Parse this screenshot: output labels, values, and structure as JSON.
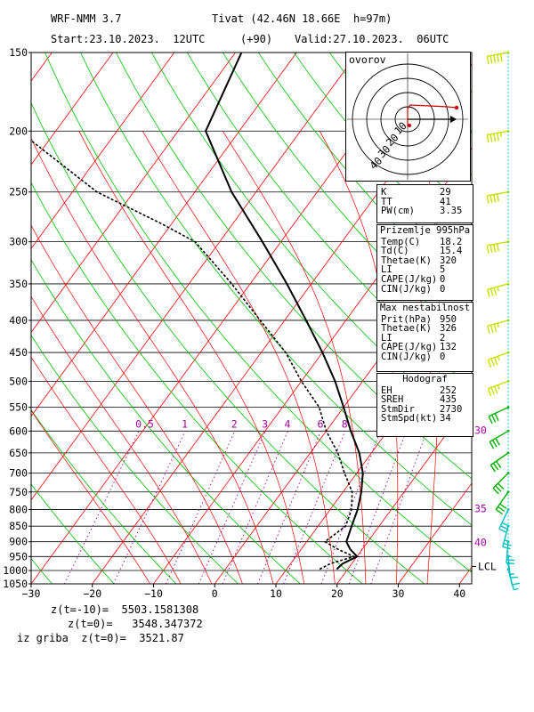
{
  "header": {
    "model": "WRF-NMM 3.7",
    "station": "Tivat (42.46N 18.66E  h=97m)",
    "start": "Start:23.10.2023.  12UTC",
    "lead": "(+90)",
    "valid": "Valid:27.10.2023.  06UTC"
  },
  "footer": {
    "line1": "z(t=-10)=  5503.1581308",
    "line2": "z(t=0)=   3548.347372",
    "line3": "iz griba  z(t=0)=  3521.87"
  },
  "hodograph": {
    "label": "ovorov",
    "ring_labels": [
      "10",
      "20",
      "30",
      "40"
    ],
    "points": [
      [
        0,
        -8
      ],
      [
        0,
        12
      ],
      [
        3,
        16
      ],
      [
        25,
        15
      ],
      [
        45,
        14
      ],
      [
        55,
        13
      ]
    ],
    "storm_motion": [
      2,
      -7
    ],
    "arrow": [
      48,
      0
    ]
  },
  "indices": {
    "k_label": "K",
    "k_value": "29",
    "tt_label": "TT",
    "tt_value": "41",
    "pw_label": "PW(cm)",
    "pw_value": "3.35"
  },
  "surface": {
    "title": "Prizemlje 995hPa",
    "rows": [
      {
        "label": "Temp(C)",
        "value": "18.2"
      },
      {
        "label": "Td(C)",
        "value": "15.4"
      },
      {
        "label": "Thetae(K)",
        "value": "320"
      },
      {
        "label": "LI",
        "value": "5"
      },
      {
        "label": "CAPE(J/kg)",
        "value": "0"
      },
      {
        "label": "CIN(J/kg)",
        "value": "0"
      }
    ]
  },
  "max_instability": {
    "title": "Max nestabilnost",
    "rows": [
      {
        "label": "Prit(hPa)",
        "value": "950"
      },
      {
        "label": "Thetae(K)",
        "value": "326"
      },
      {
        "label": "LI",
        "value": "2"
      },
      {
        "label": "CAPE(J/kg)",
        "value": "132"
      },
      {
        "label": "CIN(J/kg)",
        "value": "0"
      }
    ]
  },
  "hodograf": {
    "title": "Hodograf",
    "rows": [
      {
        "label": "EH",
        "value": "252"
      },
      {
        "label": "SREH",
        "value": "435"
      },
      {
        "label": "StmDir",
        "value": "2730"
      },
      {
        "label": "StmSpd(kt)",
        "value": "34"
      }
    ]
  },
  "colors": {
    "isotherm": "#ff0000",
    "dry_adiabat": "#00c000",
    "moist_adiabat": "#ff0000",
    "mixing_ratio": "#a000a0",
    "temperature": "#000000",
    "dewpoint": "#000000",
    "barb_upper": "#c8e000",
    "barb_mid": "#00b000",
    "barb_low": "#00c0c0",
    "theta_label": "#a000a0"
  },
  "chart_data": {
    "type": "skew-t",
    "pressure_levels": [
      150,
      200,
      250,
      300,
      350,
      400,
      450,
      500,
      550,
      600,
      650,
      700,
      750,
      800,
      850,
      900,
      950,
      1000,
      1050
    ],
    "x_ticks": [
      -30,
      -20,
      -10,
      0,
      10,
      20,
      30,
      40
    ],
    "xlim": [
      -30,
      42
    ],
    "ylim": [
      1050,
      150
    ],
    "mixing_ratio_labels": [
      "0.5",
      "1",
      "2",
      "3",
      "4",
      "6",
      "8"
    ],
    "theta_e_labels": [
      "30",
      "35",
      "40"
    ],
    "lcl_label": "LCL",
    "lcl_pressure": 985,
    "temperature": {
      "name": "Temperature",
      "points": [
        [
          995,
          18.2
        ],
        [
          975,
          18.5
        ],
        [
          950,
          20.0
        ],
        [
          925,
          18.0
        ],
        [
          900,
          16.5
        ],
        [
          850,
          15.5
        ],
        [
          800,
          14.5
        ],
        [
          750,
          13.0
        ],
        [
          700,
          11.0
        ],
        [
          650,
          8.0
        ],
        [
          600,
          4.0
        ],
        [
          550,
          0.0
        ],
        [
          500,
          -4.5
        ],
        [
          450,
          -10.0
        ],
        [
          400,
          -16.5
        ],
        [
          350,
          -24.0
        ],
        [
          300,
          -33.0
        ],
        [
          250,
          -44.0
        ],
        [
          200,
          -55.5
        ],
        [
          150,
          -59.0
        ]
      ]
    },
    "dewpoint": {
      "name": "Dewpoint",
      "points": [
        [
          995,
          15.4
        ],
        [
          975,
          16.5
        ],
        [
          950,
          19.5
        ],
        [
          925,
          16.0
        ],
        [
          900,
          13.0
        ],
        [
          850,
          14.5
        ],
        [
          800,
          13.5
        ],
        [
          750,
          11.5
        ],
        [
          700,
          8.0
        ],
        [
          650,
          4.5
        ],
        [
          600,
          0.0
        ],
        [
          550,
          -4.0
        ],
        [
          500,
          -10.0
        ],
        [
          450,
          -16.0
        ],
        [
          400,
          -24.0
        ],
        [
          350,
          -33.0
        ],
        [
          300,
          -44.0
        ],
        [
          280,
          -52.0
        ],
        [
          250,
          -66.0
        ],
        [
          200,
          -86.0
        ],
        [
          150,
          -98.0
        ]
      ]
    },
    "wind_barbs": [
      {
        "p": 150,
        "dir": 260,
        "kt": 50
      },
      {
        "p": 200,
        "dir": 260,
        "kt": 45
      },
      {
        "p": 250,
        "dir": 260,
        "kt": 40
      },
      {
        "p": 300,
        "dir": 260,
        "kt": 40
      },
      {
        "p": 350,
        "dir": 255,
        "kt": 35
      },
      {
        "p": 400,
        "dir": 255,
        "kt": 35
      },
      {
        "p": 450,
        "dir": 250,
        "kt": 35
      },
      {
        "p": 500,
        "dir": 250,
        "kt": 35
      },
      {
        "p": 550,
        "dir": 245,
        "kt": 30
      },
      {
        "p": 600,
        "dir": 240,
        "kt": 30
      },
      {
        "p": 650,
        "dir": 235,
        "kt": 30
      },
      {
        "p": 700,
        "dir": 225,
        "kt": 30
      },
      {
        "p": 750,
        "dir": 215,
        "kt": 30
      },
      {
        "p": 800,
        "dir": 205,
        "kt": 30
      },
      {
        "p": 850,
        "dir": 195,
        "kt": 25
      },
      {
        "p": 900,
        "dir": 185,
        "kt": 25
      },
      {
        "p": 950,
        "dir": 175,
        "kt": 15
      },
      {
        "p": 975,
        "dir": 170,
        "kt": 10
      },
      {
        "p": 995,
        "dir": 165,
        "kt": 5
      }
    ]
  }
}
